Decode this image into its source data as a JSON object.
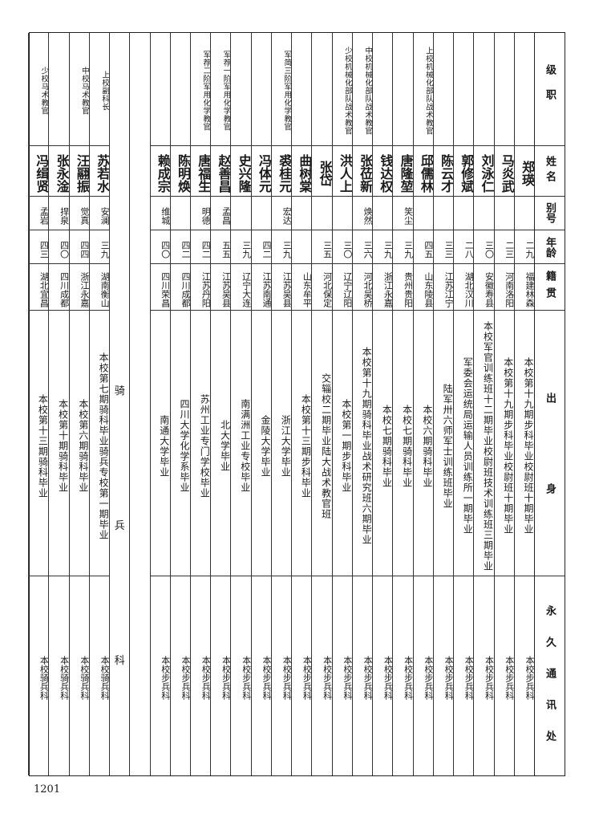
{
  "headers": {
    "rank": "级职",
    "name": "姓名",
    "alias": "别号",
    "age": "年龄",
    "native_place": "籍贯",
    "background": "出身",
    "address": "永久通讯处"
  },
  "infantry_rows": [
    {
      "rank": "",
      "name": "郑瑛",
      "alias": "",
      "age": "二九",
      "native_place": "福建林森",
      "background": "本校第十九期步科毕业校尉班十期毕业",
      "address": "本校步兵科"
    },
    {
      "rank": "",
      "name": "马炎武",
      "alias": "",
      "age": "二三",
      "native_place": "河南洛阳",
      "background": "本校第十九期步科毕业校尉班十期毕业",
      "address": "本校步兵科"
    },
    {
      "rank": "",
      "name": "刘泳仁",
      "alias": "",
      "age": "三〇",
      "native_place": "安徽寿县",
      "background": "本校军官训练班十二期毕业校尉班技术训练班三期毕业",
      "address": "本校步兵科"
    },
    {
      "rank": "",
      "name": "郭修斌",
      "alias": "",
      "age": "二八",
      "native_place": "湖北汉川",
      "background": "军委会运统局运输人员训练所一期毕业",
      "address": "本校步兵科"
    },
    {
      "rank": "",
      "name": "陈云才",
      "alias": "",
      "age": "三三",
      "native_place": "江苏江宁",
      "background": "陆军卅六师军士训练班毕业",
      "address": "本校步兵科"
    },
    {
      "rank": "上校机械化部队战术教官",
      "name": "邱儒林",
      "alias": "",
      "age": "四五",
      "native_place": "山东陵县",
      "background": "本校六期骑科毕业",
      "address": "本校步兵科"
    },
    {
      "rank": "",
      "name": "唐隆堃",
      "alias": "笑尘",
      "age": "三九",
      "native_place": "贵州贵阳",
      "background": "本校七期骑科毕业",
      "address": "本校步兵科"
    },
    {
      "rank": "",
      "name": "钱达权",
      "alias": "",
      "age": "三九",
      "native_place": "浙江永嘉",
      "background": "本校七期骑科毕业",
      "address": "本校步兵科"
    },
    {
      "rank": "中校机械化部队战术教官",
      "name": "张莅新",
      "alias": "焕然",
      "age": "三六",
      "native_place": "河北吴桥",
      "background": "本校第十九期骑科毕业战术研究班六期毕业",
      "address": "本校步兵科"
    },
    {
      "rank": "少校机械化部队战术教官",
      "name": "洪人上",
      "alias": "",
      "age": "三〇",
      "native_place": "辽宁辽阳",
      "background": "本校第一期步科毕业",
      "address": "本校步兵科"
    },
    {
      "rank": "",
      "name": "张岱",
      "alias": "",
      "age": "三五",
      "native_place": "河北保定",
      "background": "交辎校二期毕业陆大战术教官班",
      "address": "本校步兵科"
    },
    {
      "rank": "",
      "name": "曲树棠",
      "alias": "",
      "age": "",
      "native_place": "山东牟平",
      "background": "本校第十三期步科毕业",
      "address": "本校步兵科"
    },
    {
      "rank": "军简三阶军用化学教官",
      "name": "裘桂元",
      "alias": "宏达",
      "age": "三九",
      "native_place": "江苏吴县",
      "background": "浙江大学毕业",
      "address": "本校步兵科"
    },
    {
      "rank": "",
      "name": "冯体元",
      "alias": "",
      "age": "四二",
      "native_place": "江苏南通",
      "background": "金陵大学毕业",
      "address": "本校步兵科"
    },
    {
      "rank": "",
      "name": "史兴隆",
      "alias": "",
      "age": "三九",
      "native_place": "辽宁大连",
      "background": "南满洲工业专校毕业",
      "address": "本校步兵科"
    },
    {
      "rank": "军荐一阶军用化学教官",
      "name": "赵善昌",
      "alias": "孟昌",
      "age": "五五",
      "native_place": "江苏吴县",
      "background": "北大学毕业",
      "address": "本校步兵科"
    },
    {
      "rank": "军荐二阶军用化学教官",
      "name": "唐福生",
      "alias": "明德",
      "age": "四二",
      "native_place": "江苏丹阳",
      "background": "苏州工业专门学校毕业",
      "address": "本校步兵科"
    },
    {
      "rank": "",
      "name": "陈明焕",
      "alias": "",
      "age": "四二",
      "native_place": "四川成都",
      "background": "四川大学化学系毕业",
      "address": "本校步兵科"
    },
    {
      "rank": "",
      "name": "赖成宗",
      "alias": "维城",
      "age": "四〇",
      "native_place": "四川荣昌",
      "background": "南通大学毕业",
      "address": "本校步兵科"
    }
  ],
  "section": {
    "chars": [
      "骑",
      "兵",
      "科"
    ]
  },
  "cavalry_rows": [
    {
      "rank": "上校副科长",
      "name": "苏若水",
      "alias": "安澜",
      "age": "三九",
      "native_place": "湖南衡山",
      "background": "本校第七期骑科毕业骑兵专校第一期毕业",
      "address": "本校骑兵科"
    },
    {
      "rank": "中校马术教官",
      "name": "汪翮振",
      "alias": "觉真",
      "age": "四四",
      "native_place": "浙江永嘉",
      "background": "本校第六期骑科毕业",
      "address": "本校骑兵科"
    },
    {
      "rank": "",
      "name": "张永淦",
      "alias": "捍泉",
      "age": "四〇",
      "native_place": "四川成都",
      "background": "本校第十期骑科毕业",
      "address": "本校骑兵科"
    },
    {
      "rank": "少校马术教官",
      "name": "冯缉贤",
      "alias": "孟岩",
      "age": "四三",
      "native_place": "湖北宜昌",
      "background": "本校第十三期骑科毕业",
      "address": "本校骑兵科"
    }
  ],
  "page_number": "1201"
}
